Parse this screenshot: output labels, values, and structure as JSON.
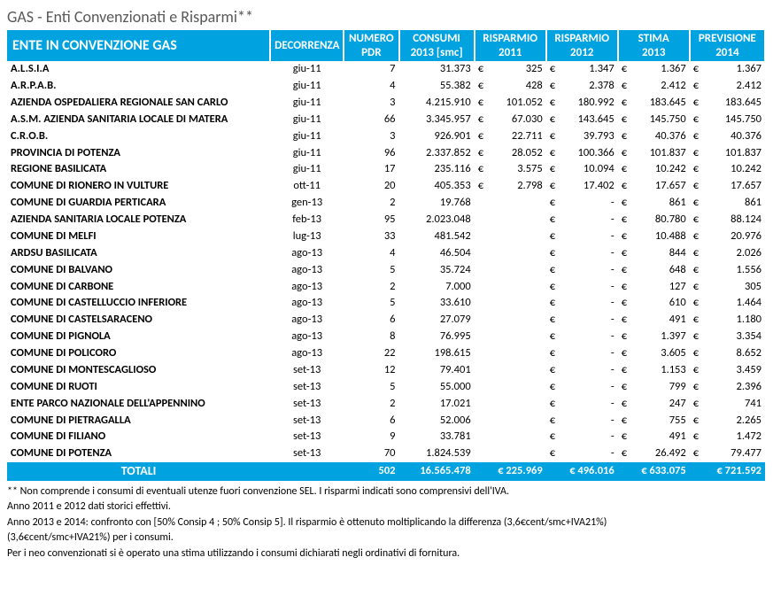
{
  "title": "GAS - Enti Convenzionati e Risparmi**",
  "headers": {
    "ente": "ENTE IN CONVENZIONE GAS",
    "decorrenza": "DECORRENZA",
    "pdr": "NUMERO\nPDR",
    "consumi": "CONSUMI\n2013 [smc]",
    "risp2011": "RISPARMIO\n2011",
    "risp2012": "RISPARMIO\n2012",
    "stima2013": "STIMA\n2013",
    "prev2014": "PREVISIONE\n2014"
  },
  "currency_symbol": "€",
  "rows": [
    {
      "ente": "A.L.S.I.A",
      "decor": "giu-11",
      "pdr": "7",
      "cons": "31.373",
      "r11": "325",
      "r12": "1.347",
      "s13": "1.367",
      "p14": "1.367"
    },
    {
      "ente": "A.R.P.A.B.",
      "decor": "giu-11",
      "pdr": "4",
      "cons": "55.382",
      "r11": "428",
      "r12": "2.378",
      "s13": "2.412",
      "p14": "2.412"
    },
    {
      "ente": "AZIENDA OSPEDALIERA REGIONALE SAN CARLO",
      "decor": "giu-11",
      "pdr": "3",
      "cons": "4.215.910",
      "r11": "101.052",
      "r12": "180.992",
      "s13": "183.645",
      "p14": "183.645"
    },
    {
      "ente": "A.S.M. AZIENDA SANITARIA LOCALE DI MATERA",
      "decor": "giu-11",
      "pdr": "66",
      "cons": "3.345.957",
      "r11": "67.030",
      "r12": "143.645",
      "s13": "145.750",
      "p14": "145.750"
    },
    {
      "ente": "C.R.O.B.",
      "decor": "giu-11",
      "pdr": "3",
      "cons": "926.901",
      "r11": "22.711",
      "r12": "39.793",
      "s13": "40.376",
      "p14": "40.376"
    },
    {
      "ente": "PROVINCIA DI POTENZA",
      "decor": "giu-11",
      "pdr": "96",
      "cons": "2.337.852",
      "r11": "28.052",
      "r12": "100.366",
      "s13": "101.837",
      "p14": "101.837"
    },
    {
      "ente": "REGIONE BASILICATA",
      "decor": "giu-11",
      "pdr": "17",
      "cons": "235.116",
      "r11": "3.575",
      "r12": "10.094",
      "s13": "10.242",
      "p14": "10.242"
    },
    {
      "ente": "COMUNE DI RIONERO IN VULTURE",
      "decor": "ott-11",
      "pdr": "20",
      "cons": "405.353",
      "r11": "2.798",
      "r12": "17.402",
      "s13": "17.657",
      "p14": "17.657"
    },
    {
      "ente": "COMUNE DI GUARDIA PERTICARA",
      "decor": "gen-13",
      "pdr": "2",
      "cons": "19.768",
      "r11": "",
      "r12": "-",
      "s13": "861",
      "p14": "861"
    },
    {
      "ente": "AZIENDA SANITARIA LOCALE POTENZA",
      "decor": "feb-13",
      "pdr": "95",
      "cons": "2.023.048",
      "r11": "",
      "r12": "-",
      "s13": "80.780",
      "p14": "88.124"
    },
    {
      "ente": "COMUNE DI MELFI",
      "decor": "lug-13",
      "pdr": "33",
      "cons": "481.542",
      "r11": "",
      "r12": "-",
      "s13": "10.488",
      "p14": "20.976"
    },
    {
      "ente": "ARDSU BASILICATA",
      "decor": "ago-13",
      "pdr": "4",
      "cons": "46.504",
      "r11": "",
      "r12": "-",
      "s13": "844",
      "p14": "2.026"
    },
    {
      "ente": "COMUNE DI BALVANO",
      "decor": "ago-13",
      "pdr": "5",
      "cons": "35.724",
      "r11": "",
      "r12": "-",
      "s13": "648",
      "p14": "1.556"
    },
    {
      "ente": "COMUNE DI CARBONE",
      "decor": "ago-13",
      "pdr": "2",
      "cons": "7.000",
      "r11": "",
      "r12": "-",
      "s13": "127",
      "p14": "305"
    },
    {
      "ente": "COMUNE DI CASTELLUCCIO INFERIORE",
      "decor": "ago-13",
      "pdr": "5",
      "cons": "33.610",
      "r11": "",
      "r12": "-",
      "s13": "610",
      "p14": "1.464"
    },
    {
      "ente": "COMUNE DI CASTELSARACENO",
      "decor": "ago-13",
      "pdr": "6",
      "cons": "27.079",
      "r11": "",
      "r12": "-",
      "s13": "491",
      "p14": "1.180"
    },
    {
      "ente": "COMUNE DI PIGNOLA",
      "decor": "ago-13",
      "pdr": "8",
      "cons": "76.995",
      "r11": "",
      "r12": "-",
      "s13": "1.397",
      "p14": "3.354"
    },
    {
      "ente": "COMUNE DI POLICORO",
      "decor": "ago-13",
      "pdr": "22",
      "cons": "198.615",
      "r11": "",
      "r12": "-",
      "s13": "3.605",
      "p14": "8.652"
    },
    {
      "ente": "COMUNE DI MONTESCAGLIOSO",
      "decor": "set-13",
      "pdr": "12",
      "cons": "79.401",
      "r11": "",
      "r12": "-",
      "s13": "1.153",
      "p14": "3.459"
    },
    {
      "ente": "COMUNE DI RUOTI",
      "decor": "set-13",
      "pdr": "5",
      "cons": "55.000",
      "r11": "",
      "r12": "-",
      "s13": "799",
      "p14": "2.396"
    },
    {
      "ente": "ENTE PARCO NAZIONALE DELL'APPENNINO",
      "decor": "set-13",
      "pdr": "2",
      "cons": "17.021",
      "r11": "",
      "r12": "-",
      "s13": "247",
      "p14": "741"
    },
    {
      "ente": "COMUNE DI PIETRAGALLA",
      "decor": "set-13",
      "pdr": "6",
      "cons": "52.006",
      "r11": "",
      "r12": "-",
      "s13": "755",
      "p14": "2.265"
    },
    {
      "ente": "COMUNE DI FILIANO",
      "decor": "set-13",
      "pdr": "9",
      "cons": "33.781",
      "r11": "",
      "r12": "-",
      "s13": "491",
      "p14": "1.472"
    },
    {
      "ente": "COMUNE DI POTENZA",
      "decor": "set-13",
      "pdr": "70",
      "cons": "1.824.539",
      "r11": "",
      "r12": "-",
      "s13": "26.492",
      "p14": "79.477"
    }
  ],
  "totals": {
    "label": "TOTALI",
    "pdr": "502",
    "cons": "16.565.478",
    "r11": "€  225.969",
    "r12": "€  496.016",
    "s13": "€  633.075",
    "p14": "€  721.592"
  },
  "footnotes": [
    "** Non comprende i consumi di eventuali utenze fuori convenzione SEL. I risparmi indicati sono comprensivi dell'IVA.",
    "Anno 2011 e 2012 dati storici effettivi.",
    "Anno 2013 e 2014: confronto con [50% Consip 4 ; 50% Consip 5]. Il risparmio è ottenuto moltiplicando la differenza (3,6€cent/smc+IVA21%)",
    "(3,6€cent/smc+IVA21%) per i consumi.",
    "Per i neo convenzionati si è operato una stima utilizzando i consumi dichiarati negli ordinativi di fornitura."
  ]
}
